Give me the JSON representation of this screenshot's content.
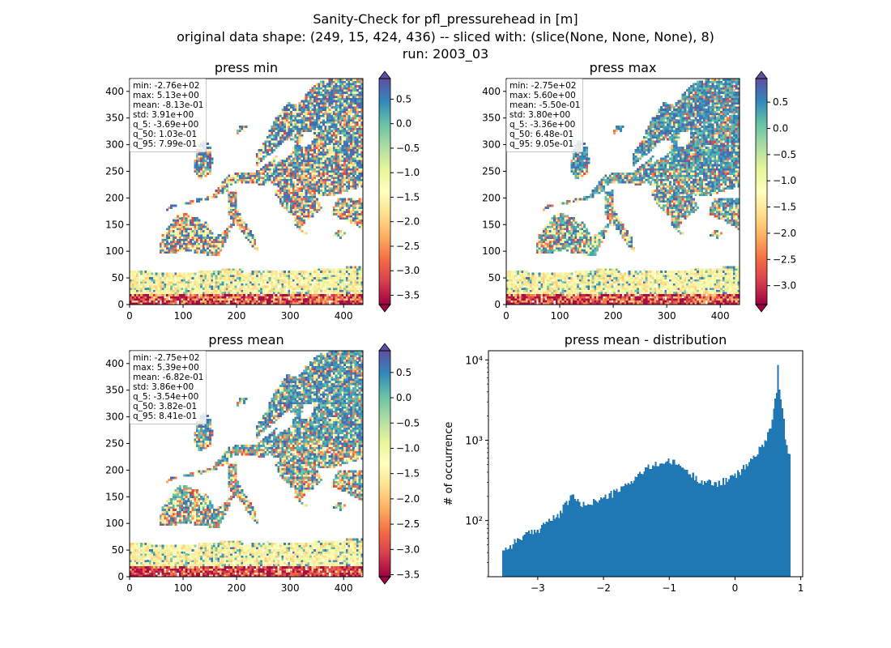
{
  "figure": {
    "title_lines": [
      "Sanity-Check for pfl_pressurehead in [m]",
      "original data shape: (249, 15, 424, 436) -- sliced with: (slice(None, None, None), 8)",
      "run: 2003_03"
    ]
  },
  "colormap": {
    "name": "Spectral",
    "stops": [
      "#9e0142",
      "#d53e4f",
      "#f46d43",
      "#fdae61",
      "#fee08b",
      "#ffffbf",
      "#e6f598",
      "#abdda4",
      "#66c2a5",
      "#3288bd",
      "#5e4fa2"
    ],
    "sea_color": "#ffffff"
  },
  "chart_data": [
    {
      "type": "heatmap",
      "title": "press min",
      "x_ticks": [
        0,
        100,
        200,
        300,
        400
      ],
      "y_ticks": [
        0,
        50,
        100,
        150,
        200,
        250,
        300,
        350,
        400
      ],
      "xlim": [
        0,
        436
      ],
      "ylim": [
        0,
        424
      ],
      "colorbar": {
        "vmin": -3.69,
        "vmax": 0.92,
        "ticks": [
          0.5,
          0.0,
          -0.5,
          -1.0,
          -1.5,
          -2.0,
          -2.5,
          -3.0,
          -3.5
        ],
        "tick_labels": [
          "0.5",
          "0.0",
          "−0.5",
          "−1.0",
          "−1.5",
          "−2.0",
          "−2.5",
          "−3.0",
          "−3.5"
        ]
      },
      "stats": [
        "min: -2.76e+02",
        "max: 5.13e+00",
        "mean: -8.13e-01",
        "std: 3.91e+00",
        "q_5: -3.69e+00",
        "q_50: 1.03e-01",
        "q_95: 7.99e-01"
      ]
    },
    {
      "type": "heatmap",
      "title": "press max",
      "x_ticks": [
        0,
        100,
        200,
        300,
        400
      ],
      "y_ticks": [
        0,
        50,
        100,
        150,
        200,
        250,
        300,
        350,
        400
      ],
      "xlim": [
        0,
        436
      ],
      "ylim": [
        0,
        424
      ],
      "colorbar": {
        "vmin": -3.36,
        "vmax": 0.95,
        "ticks": [
          0.5,
          0.0,
          -0.5,
          -1.0,
          -1.5,
          -2.0,
          -2.5,
          -3.0
        ],
        "tick_labels": [
          "0.5",
          "0.0",
          "−0.5",
          "−1.0",
          "−1.5",
          "−2.0",
          "−2.5",
          "−3.0"
        ]
      },
      "stats": [
        "min: -2.75e+02",
        "max: 5.60e+00",
        "mean: -5.50e-01",
        "std: 3.80e+00",
        "q_5: -3.36e+00",
        "q_50: 6.48e-01",
        "q_95: 9.05e-01"
      ]
    },
    {
      "type": "heatmap",
      "title": "press mean",
      "x_ticks": [
        0,
        100,
        200,
        300,
        400
      ],
      "y_ticks": [
        0,
        50,
        100,
        150,
        200,
        250,
        300,
        350,
        400
      ],
      "xlim": [
        0,
        436
      ],
      "ylim": [
        0,
        424
      ],
      "colorbar": {
        "vmin": -3.54,
        "vmax": 0.93,
        "ticks": [
          0.5,
          0.0,
          -0.5,
          -1.0,
          -1.5,
          -2.0,
          -2.5,
          -3.0,
          -3.5
        ],
        "tick_labels": [
          "0.5",
          "0.0",
          "−0.5",
          "−1.0",
          "−1.5",
          "−2.0",
          "−2.5",
          "−3.0",
          "−3.5"
        ]
      },
      "stats": [
        "min: -2.75e+02",
        "max: 5.39e+00",
        "mean: -6.82e-01",
        "std: 3.86e+00",
        "q_5: -3.54e+00",
        "q_50: 3.82e-01",
        "q_95: 8.41e-01"
      ]
    },
    {
      "type": "bar",
      "title": "press mean - distribution",
      "ylabel": "# of occurrence",
      "xlabel": "",
      "y_scale": "log",
      "xlim": [
        -3.75,
        1.03
      ],
      "ylim": [
        20,
        13000
      ],
      "x_ticks": [
        -3,
        -2,
        -1,
        0,
        1
      ],
      "x_tick_labels": [
        "−3",
        "−2",
        "−1",
        "0",
        "1"
      ],
      "y_ticks": [
        100,
        1000,
        10000
      ],
      "y_tick_labels": [
        "10²",
        "10³",
        "10⁴"
      ],
      "color": "#1f77b4",
      "bin_range": [
        -3.54,
        0.84
      ],
      "bin_count": 200,
      "control_points": [
        [
          -3.54,
          45
        ],
        [
          -3.45,
          45
        ],
        [
          -3.35,
          55
        ],
        [
          -3.2,
          65
        ],
        [
          -3.0,
          75
        ],
        [
          -2.9,
          95
        ],
        [
          -2.7,
          110
        ],
        [
          -2.55,
          170
        ],
        [
          -2.45,
          210
        ],
        [
          -2.35,
          150
        ],
        [
          -2.2,
          170
        ],
        [
          -2.05,
          180
        ],
        [
          -1.9,
          210
        ],
        [
          -1.75,
          240
        ],
        [
          -1.6,
          300
        ],
        [
          -1.45,
          380
        ],
        [
          -1.3,
          460
        ],
        [
          -1.15,
          520
        ],
        [
          -1.0,
          540
        ],
        [
          -0.85,
          500
        ],
        [
          -0.75,
          420
        ],
        [
          -0.6,
          340
        ],
        [
          -0.45,
          300
        ],
        [
          -0.3,
          290
        ],
        [
          -0.15,
          310
        ],
        [
          0.0,
          360
        ],
        [
          0.1,
          420
        ],
        [
          0.2,
          520
        ],
        [
          0.3,
          640
        ],
        [
          0.4,
          800
        ],
        [
          0.5,
          1200
        ],
        [
          0.55,
          1600
        ],
        [
          0.6,
          2800
        ],
        [
          0.64,
          4500
        ],
        [
          0.66,
          10500
        ],
        [
          0.68,
          3800
        ],
        [
          0.72,
          2500
        ],
        [
          0.76,
          1200
        ],
        [
          0.8,
          650
        ],
        [
          0.84,
          600
        ]
      ]
    }
  ]
}
